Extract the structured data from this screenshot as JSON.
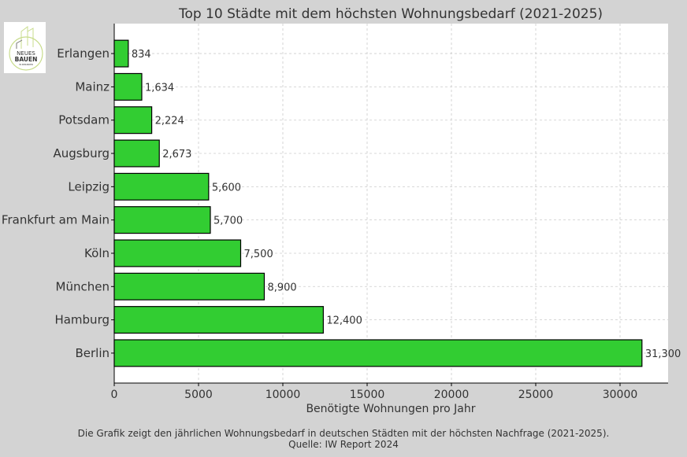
{
  "chart_data": {
    "type": "bar",
    "orientation": "horizontal",
    "title": "Top 10 Städte mit dem höchsten Wohnungsbedarf (2021-2025)",
    "xlabel": "Benötigte Wohnungen pro Jahr",
    "ylabel": "",
    "categories": [
      "Berlin",
      "Hamburg",
      "München",
      "Köln",
      "Frankfurt am Main",
      "Leipzig",
      "Augsburg",
      "Potsdam",
      "Mainz",
      "Erlangen"
    ],
    "values": [
      31300,
      12400,
      8900,
      7500,
      5700,
      5600,
      2673,
      2224,
      1634,
      834
    ],
    "data_labels": [
      "31,300",
      "12,400",
      "8,900",
      "7,500",
      "5,700",
      "5,600",
      "2,673",
      "2,224",
      "1,634",
      "834"
    ],
    "xlim": [
      0,
      32850
    ],
    "xticks": [
      0,
      5000,
      10000,
      15000,
      20000,
      25000,
      30000
    ],
    "xtick_labels": [
      "0",
      "5000",
      "10000",
      "15000",
      "20000",
      "25000",
      "30000"
    ],
    "grid": true,
    "bar_color": "#32cd32",
    "caption": "Die Grafik zeigt den jährlichen Wohnungsbedarf in deutschen Städten mit der höchsten Nachfrage (2021-2025).",
    "source": "Quelle: IW Report 2024"
  },
  "logo": {
    "line1": "NEUES",
    "line2": "BAUEN",
    "line3": "IN SEKUNDEN"
  }
}
